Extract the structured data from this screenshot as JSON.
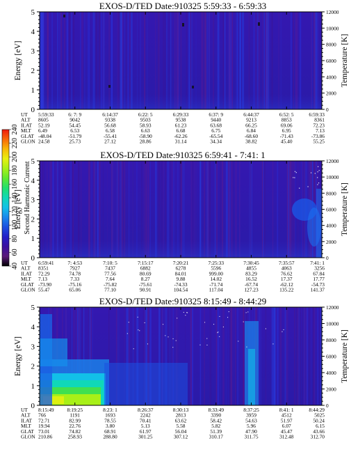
{
  "chart_data": [
    {
      "type": "heatmap",
      "title": "EXOS-D/TED   Date:910325   5:59:33 - 6:59:33",
      "ylabel": "Energy [eV]",
      "y2label": "Temperature [K]",
      "ylim": [
        0,
        5
      ],
      "yticks": [
        "0",
        "1",
        "2",
        "3",
        "4",
        "5"
      ],
      "y2lim": [
        0,
        12000
      ],
      "y2ticks": [
        "0",
        "2000",
        "4000",
        "6000",
        "8000",
        "10000",
        "12000"
      ],
      "rows": [
        {
          "label": "UT",
          "values": [
            "5:59:33",
            "6: 7: 9",
            "6:14:37",
            "6:22: 5",
            "6:29:33",
            "6:37: 9",
            "6:44:37",
            "6:52: 5",
            "6:59:33"
          ]
        },
        {
          "label": "ALT",
          "values": [
            "8605",
            "9042",
            "9338",
            "9503",
            "9538",
            "9440",
            "9213",
            "8853",
            "8361"
          ]
        },
        {
          "label": "ILAT",
          "values": [
            "52.19",
            "54.45",
            "56.68",
            "58.93",
            "61.23",
            "63.68",
            "66.25",
            "69.06",
            "72.23"
          ]
        },
        {
          "label": "MLT",
          "values": [
            "6.49",
            "6.53",
            "6.58",
            "6.63",
            "6.68",
            "6.75",
            "6.84",
            "6.95",
            "7.13"
          ]
        },
        {
          "label": "GLAT",
          "values": [
            "-48.04",
            "-51.79",
            "-55.41",
            "-58.90",
            "-62.26",
            "-65.54",
            "-68.60",
            "-71.43",
            "-73.86"
          ]
        },
        {
          "label": "GLON",
          "values": [
            "24.58",
            "25.73",
            "27.12",
            "28.86",
            "31.14",
            "34.34",
            "38.82",
            "45.40",
            "55.25"
          ]
        }
      ]
    },
    {
      "type": "heatmap",
      "title": "EXOS-D/TED   Date:910325   6:59:41 - 7:41: 1",
      "ylabel": "Energy [eV]",
      "y2label": "Temperature [K]",
      "ylim": [
        0,
        5
      ],
      "yticks": [
        "0",
        "1",
        "2",
        "3",
        "4",
        "5"
      ],
      "y2lim": [
        0,
        12000
      ],
      "y2ticks": [
        "0",
        "2000",
        "4000",
        "6000",
        "8000",
        "10000",
        "12000"
      ],
      "rows": [
        {
          "label": "UT",
          "values": [
            "6:59:41",
            "7: 4:53",
            "7:10: 5",
            "7:15:17",
            "7:20:21",
            "7:25:33",
            "7:30:45",
            "7:35:57",
            "7:41: 1"
          ]
        },
        {
          "label": "ALT",
          "values": [
            "8351",
            "7927",
            "7437",
            "6882",
            "6278",
            "5596",
            "4855",
            "4063",
            "3256"
          ]
        },
        {
          "label": "ILAT",
          "values": [
            "72.29",
            "74.78",
            "77.56",
            "80.69",
            "84.01",
            "999.00",
            "83.29",
            "76.62",
            "67.84"
          ]
        },
        {
          "label": "MLT",
          "values": [
            "7.13",
            "7.33",
            "7.64",
            "8.27",
            "9.88",
            "14.02",
            "16.52",
            "17.37",
            "17.77"
          ]
        },
        {
          "label": "GLAT",
          "values": [
            "-73.90",
            "-75.16",
            "-75.82",
            "-75.61",
            "-74.33",
            "-71.74",
            "-67.74",
            "-62.12",
            "-54.73"
          ]
        },
        {
          "label": "GLON",
          "values": [
            "55.47",
            "65.06",
            "77.10",
            "90.91",
            "104.54",
            "117.04",
            "127.23",
            "135.22",
            "141.37"
          ]
        }
      ]
    },
    {
      "type": "heatmap",
      "title": "EXOS-D/TED   Date:910325   8:15:49 - 8:44:29",
      "ylabel": "Energy [eV]",
      "y2label": "Temperature [K]",
      "ylim": [
        0,
        5
      ],
      "yticks": [
        "0",
        "1",
        "2",
        "3",
        "4",
        "5"
      ],
      "y2lim": [
        0,
        12000
      ],
      "y2ticks": [
        "0",
        "2000",
        "4000",
        "6000",
        "8000",
        "10000",
        "12000"
      ],
      "rows": [
        {
          "label": "UT",
          "values": [
            "8:15:49",
            "8:19:25",
            "8:23: 1",
            "8:26:37",
            "8:30:13",
            "8:33:49",
            "8:37:25",
            "8:41: 1",
            "8:44:29"
          ]
        },
        {
          "label": "ALT",
          "values": [
            "766",
            "1191",
            "1693",
            "2242",
            "2813",
            "3390",
            "3959",
            "4512",
            "5025"
          ]
        },
        {
          "label": "ILAT",
          "values": [
            "72.71",
            "82.99",
            "78.55",
            "70.41",
            "63.62",
            "58.42",
            "54.63",
            "51.97",
            "50.24"
          ]
        },
        {
          "label": "MLT",
          "values": [
            "19.94",
            "22.76",
            "3.80",
            "5.13",
            "5.58",
            "5.82",
            "5.96",
            "6.07",
            "6.15"
          ]
        },
        {
          "label": "GLAT",
          "values": [
            "73.01",
            "74.82",
            "68.91",
            "61.97",
            "56.04",
            "51.39",
            "47.90",
            "45.47",
            "43.66"
          ]
        },
        {
          "label": "GLON",
          "values": [
            "210.86",
            "258.93",
            "288.80",
            "301.25",
            "307.12",
            "310.17",
            "311.75",
            "312.48",
            "312.70"
          ]
        }
      ]
    }
  ],
  "colorbar": {
    "label": "Second Harmonic Current",
    "ticks": [
      "40",
      "60",
      "80",
      "100",
      "120",
      "140",
      "160",
      "180",
      "200",
      "220",
      "240"
    ],
    "range": [
      40,
      240
    ],
    "colors": [
      "#000000",
      "#5a1a7a",
      "#3a10a0",
      "#2420c8",
      "#1c50e0",
      "#1a88ec",
      "#12c0e8",
      "#10d8b8",
      "#20e070",
      "#60e830",
      "#a8f018",
      "#e8f010",
      "#f8b808",
      "#f86808",
      "#ee1a10"
    ]
  }
}
